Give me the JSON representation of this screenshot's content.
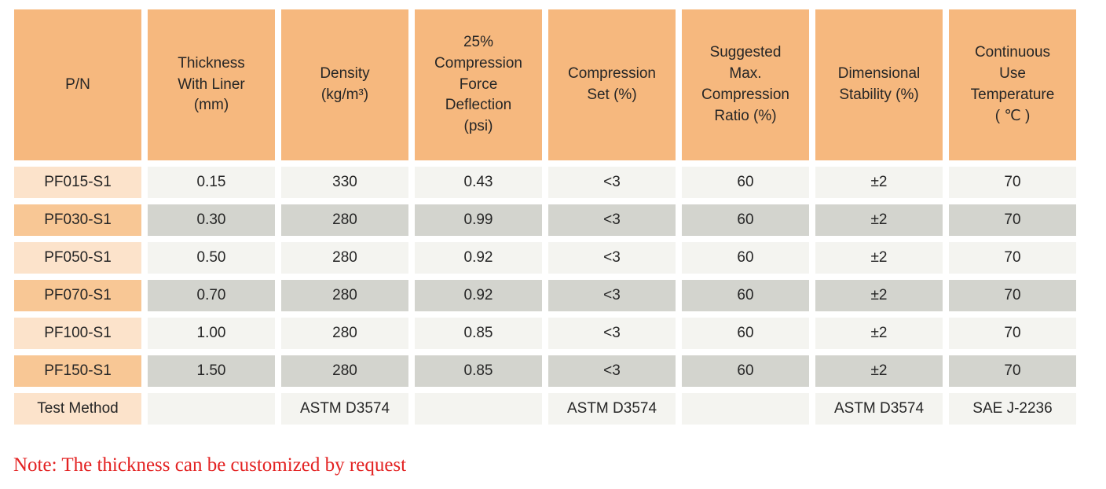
{
  "colors": {
    "page_bg": "#ffffff",
    "header_bg": "#f6b87e",
    "pn_light_bg": "#fce3cb",
    "pn_dark_bg": "#f8c795",
    "val_light_bg": "#f4f4f0",
    "val_dark_bg": "#d3d4ce",
    "text": "#262626",
    "note_text": "#e32222"
  },
  "table": {
    "columns": [
      {
        "id": "pn",
        "label": "P/N"
      },
      {
        "id": "thickness_with_liner",
        "label": "Thickness\nWith Liner\n(mm)"
      },
      {
        "id": "density",
        "label": "Density\n(kg/m³)"
      },
      {
        "id": "compression_force_deflection",
        "label": "25%\nCompression\nForce\nDeflection\n(psi)"
      },
      {
        "id": "compression_set",
        "label": "Compression\nSet (%)"
      },
      {
        "id": "suggested_max_compression_ratio",
        "label": "Suggested\nMax.\nCompression\nRatio (%)"
      },
      {
        "id": "dimensional_stability",
        "label": "Dimensional\nStability (%)"
      },
      {
        "id": "continuous_use_temperature",
        "label": "Continuous\nUse\nTemperature\n( ℃ )"
      }
    ],
    "rows": [
      {
        "pn": "PF015-S1",
        "values": [
          "0.15",
          "330",
          "0.43",
          "<3",
          "60",
          "±2",
          "70"
        ]
      },
      {
        "pn": "PF030-S1",
        "values": [
          "0.30",
          "280",
          "0.99",
          "<3",
          "60",
          "±2",
          "70"
        ]
      },
      {
        "pn": "PF050-S1",
        "values": [
          "0.50",
          "280",
          "0.92",
          "<3",
          "60",
          "±2",
          "70"
        ]
      },
      {
        "pn": "PF070-S1",
        "values": [
          "0.70",
          "280",
          "0.92",
          "<3",
          "60",
          "±2",
          "70"
        ]
      },
      {
        "pn": "PF100-S1",
        "values": [
          "1.00",
          "280",
          "0.85",
          "<3",
          "60",
          "±2",
          "70"
        ]
      },
      {
        "pn": "PF150-S1",
        "values": [
          "1.50",
          "280",
          "0.85",
          "<3",
          "60",
          "±2",
          "70"
        ]
      },
      {
        "pn": "Test Method",
        "values": [
          "",
          "ASTM D3574",
          "",
          "ASTM D3574",
          "",
          "ASTM D3574",
          "SAE J-2236"
        ]
      }
    ]
  },
  "note": "Note: The thickness can be customized by request"
}
